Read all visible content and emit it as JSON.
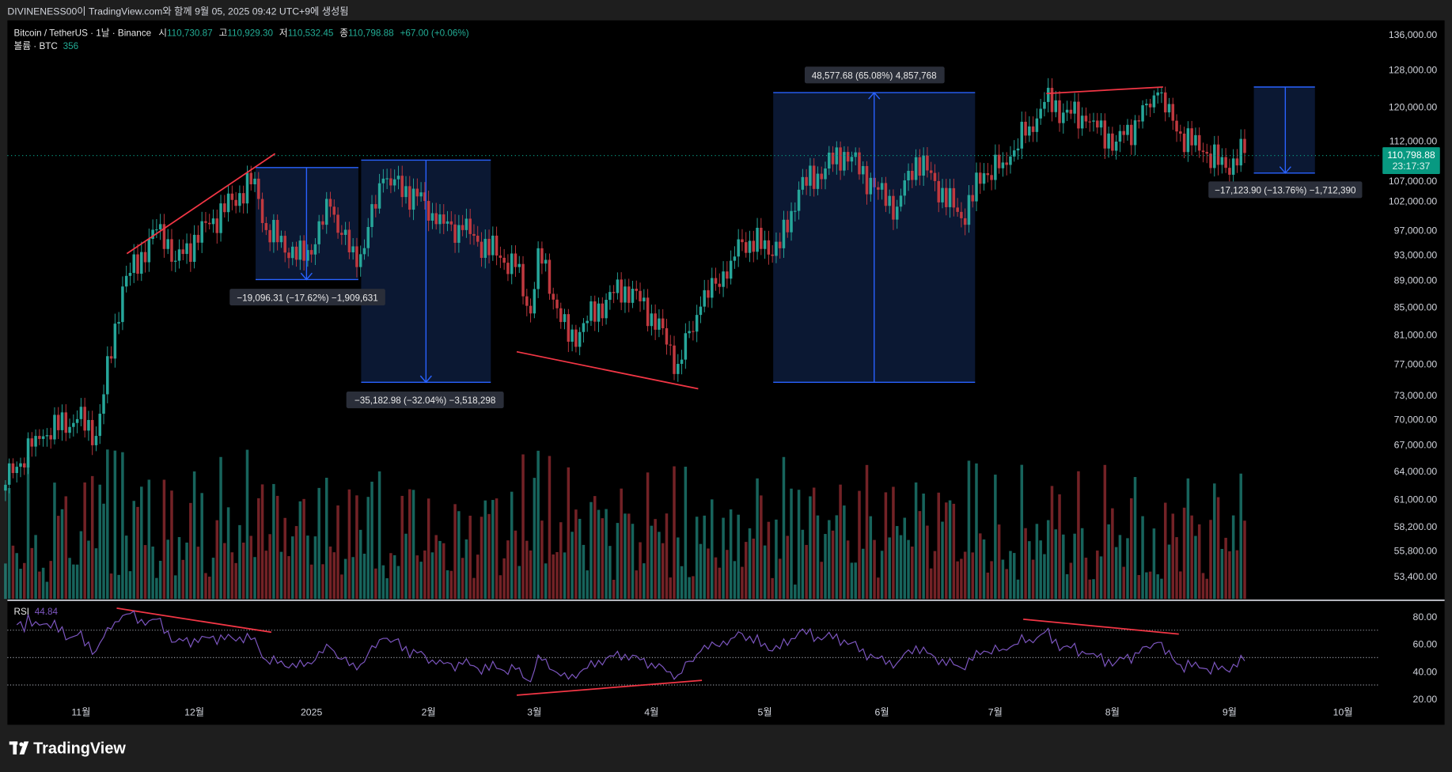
{
  "header": {
    "credit": "DIVINENESS00이 TradingView.com와 함께 9월 05, 2025 09:42 UTC+9에 생성됨"
  },
  "legend": {
    "symbol": "Bitcoin / TetherUS · 1날 · Binance",
    "o_label": "시",
    "o": "110,730.87",
    "h_label": "고",
    "h": "110,929.30",
    "l_label": "저",
    "l": "110,532.45",
    "c_label": "종",
    "c": "110,798.88",
    "change": "+67.00 (+0.06%)",
    "volume_label": "볼륨 · BTC",
    "volume_value": "356"
  },
  "last_price": {
    "price": "110,798.88",
    "countdown": "23:17:37"
  },
  "rsi": {
    "label": "RSI",
    "value": "44.84",
    "ticks": [
      {
        "v": 80,
        "label": "80.00"
      },
      {
        "v": 60,
        "label": "60.00"
      },
      {
        "v": 40,
        "label": "40.00"
      },
      {
        "v": 20,
        "label": "20.00"
      }
    ],
    "bands": [
      70,
      50,
      30
    ]
  },
  "measurements": [
    {
      "label": "−19,096.31 (−17.62%) −1,909,631",
      "direction": "down"
    },
    {
      "label": "−35,182.98 (−32.04%) −3,518,298",
      "direction": "down"
    },
    {
      "label": "48,577.68 (65.08%) 4,857,768",
      "direction": "up"
    },
    {
      "label": "−17,123.90 (−13.76%) −1,712,390",
      "direction": "down"
    }
  ],
  "footer": {
    "logo": "TradingView"
  },
  "colors": {
    "up": "#26a69a",
    "down": "#c0393f",
    "last_price": "#089981",
    "measure": "#2962ff",
    "trendline": "#f23645",
    "rsi_line": "#7e57c2"
  },
  "chart_data": {
    "type": "candlestick",
    "title": "Bitcoin / TetherUS · 1D · Binance",
    "scale": "log",
    "ylim": [
      52000,
      140000
    ],
    "price_ticks": [
      {
        "v": 136000,
        "label": "136,000.00"
      },
      {
        "v": 128000,
        "label": "128,000.00"
      },
      {
        "v": 120000,
        "label": "120,000.00"
      },
      {
        "v": 112000,
        "label": "112,000.00"
      },
      {
        "v": 107000,
        "label": "107,000.00"
      },
      {
        "v": 102000,
        "label": "102,000.00"
      },
      {
        "v": 97000,
        "label": "97,000.00"
      },
      {
        "v": 93000,
        "label": "93,000.00"
      },
      {
        "v": 89000,
        "label": "89,000.00"
      },
      {
        "v": 85000,
        "label": "85,000.00"
      },
      {
        "v": 81000,
        "label": "81,000.00"
      },
      {
        "v": 77000,
        "label": "77,000.00"
      },
      {
        "v": 73000,
        "label": "73,000.00"
      },
      {
        "v": 70000,
        "label": "70,000.00"
      },
      {
        "v": 67000,
        "label": "67,000.00"
      },
      {
        "v": 64000,
        "label": "64,000.00"
      },
      {
        "v": 61000,
        "label": "61,000.00"
      },
      {
        "v": 58200,
        "label": "58,200.00"
      },
      {
        "v": 55800,
        "label": "55,800.00"
      },
      {
        "v": 53400,
        "label": "53,400.00"
      }
    ],
    "time_ticks": [
      {
        "day": 31,
        "label": "11월"
      },
      {
        "day": 61,
        "label": "12월"
      },
      {
        "day": 92,
        "label": "2025"
      },
      {
        "day": 123,
        "label": "2월"
      },
      {
        "day": 151,
        "label": "3월"
      },
      {
        "day": 182,
        "label": "4월"
      },
      {
        "day": 212,
        "label": "5월"
      },
      {
        "day": 243,
        "label": "6월"
      },
      {
        "day": 273,
        "label": "7월"
      },
      {
        "day": 304,
        "label": "8월"
      },
      {
        "day": 335,
        "label": "9월"
      },
      {
        "day": 365,
        "label": "10월"
      }
    ],
    "key_closes": [
      {
        "date": "2024-10-12",
        "close": 62500
      },
      {
        "date": "2024-10-20",
        "close": 68000
      },
      {
        "date": "2024-10-31",
        "close": 70000
      },
      {
        "date": "2024-11-05",
        "close": 68000
      },
      {
        "date": "2024-11-12",
        "close": 88000
      },
      {
        "date": "2024-11-22",
        "close": 98000
      },
      {
        "date": "2024-11-26",
        "close": 92000
      },
      {
        "date": "2024-12-05",
        "close": 98000
      },
      {
        "date": "2024-12-17",
        "close": 106000
      },
      {
        "date": "2024-12-20",
        "close": 97000
      },
      {
        "date": "2024-12-30",
        "close": 92000
      },
      {
        "date": "2025-01-06",
        "close": 101000
      },
      {
        "date": "2025-01-13",
        "close": 91000
      },
      {
        "date": "2025-01-20",
        "close": 106000
      },
      {
        "date": "2025-01-31",
        "close": 102000
      },
      {
        "date": "2025-02-03",
        "close": 98000
      },
      {
        "date": "2025-02-10",
        "close": 97000
      },
      {
        "date": "2025-02-24",
        "close": 91000
      },
      {
        "date": "2025-02-28",
        "close": 84000
      },
      {
        "date": "2025-03-02",
        "close": 94000
      },
      {
        "date": "2025-03-10",
        "close": 80000
      },
      {
        "date": "2025-03-20",
        "close": 86000
      },
      {
        "date": "2025-03-25",
        "close": 88000
      },
      {
        "date": "2025-04-01",
        "close": 84000
      },
      {
        "date": "2025-04-08",
        "close": 77000
      },
      {
        "date": "2025-04-14",
        "close": 85000
      },
      {
        "date": "2025-04-22",
        "close": 92000
      },
      {
        "date": "2025-04-25",
        "close": 95000
      },
      {
        "date": "2025-05-05",
        "close": 94000
      },
      {
        "date": "2025-05-10",
        "close": 104000
      },
      {
        "date": "2025-05-22",
        "close": 111000
      },
      {
        "date": "2025-05-31",
        "close": 104000
      },
      {
        "date": "2025-06-05",
        "close": 101000
      },
      {
        "date": "2025-06-10",
        "close": 110000
      },
      {
        "date": "2025-06-22",
        "close": 99000
      },
      {
        "date": "2025-06-28",
        "close": 107000
      },
      {
        "date": "2025-07-03",
        "close": 109000
      },
      {
        "date": "2025-07-10",
        "close": 116000
      },
      {
        "date": "2025-07-14",
        "close": 121000
      },
      {
        "date": "2025-07-25",
        "close": 117000
      },
      {
        "date": "2025-08-02",
        "close": 113000
      },
      {
        "date": "2025-08-08",
        "close": 117000
      },
      {
        "date": "2025-08-13",
        "close": 123000
      },
      {
        "date": "2025-08-18",
        "close": 115000
      },
      {
        "date": "2025-08-25",
        "close": 111000
      },
      {
        "date": "2025-08-31",
        "close": 108000
      },
      {
        "date": "2025-09-05",
        "close": 110798.88
      }
    ]
  }
}
